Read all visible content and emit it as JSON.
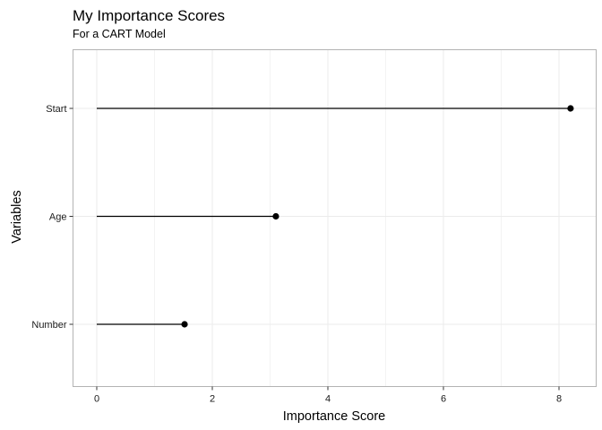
{
  "chart_data": {
    "type": "lollipop",
    "title": "My Importance Scores",
    "subtitle": "For a CART Model",
    "xlabel": "Importance Score",
    "ylabel": "Variables",
    "xlim": [
      -0.4,
      8.6
    ],
    "xticks": [
      0,
      2,
      4,
      6,
      8
    ],
    "categories": [
      "Start",
      "Age",
      "Number"
    ],
    "values": [
      8.2,
      3.1,
      1.52
    ],
    "grid": true,
    "colors": {
      "mark": "#000000",
      "grid": "#ebebeb",
      "border": "#b3b3b3"
    }
  }
}
